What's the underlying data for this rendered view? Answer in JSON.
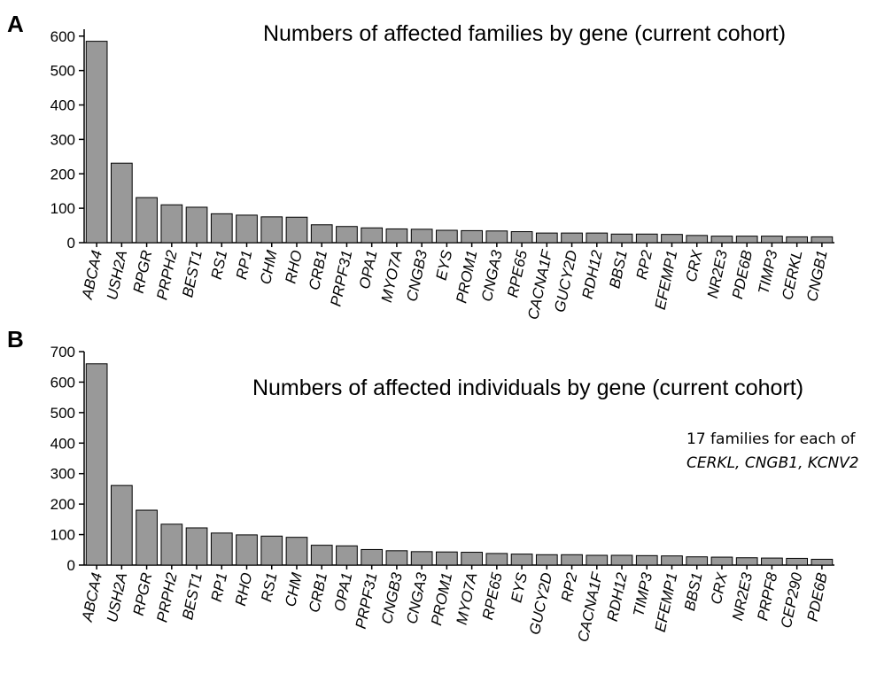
{
  "chart_data": [
    {
      "type": "bar",
      "panel": "A",
      "title": "Numbers of affected families by gene (current cohort)",
      "categories": [
        "ABCA4",
        "USH2A",
        "RPGR",
        "PRPH2",
        "BEST1",
        "RS1",
        "RP1",
        "CHM",
        "RHO",
        "CRB1",
        "PRPF31",
        "OPA1",
        "MYO7A",
        "CNGB3",
        "EYS",
        "PROM1",
        "CNGA3",
        "RPE65",
        "CACNA1F",
        "GUCY2D",
        "RDH12",
        "BBS1",
        "RP2",
        "EFEMP1",
        "CRX",
        "NR2E3",
        "PDE6B",
        "TIMP3",
        "CERKL",
        "CNGB1"
      ],
      "values": [
        585,
        231,
        131,
        110,
        103,
        84,
        80,
        75,
        74,
        52,
        47,
        43,
        40,
        39,
        36,
        35,
        34,
        32,
        28,
        28,
        28,
        25,
        25,
        24,
        21,
        19,
        19,
        19,
        17,
        17
      ],
      "color": "#999999",
      "ylim": [
        0,
        620
      ],
      "yticks": [
        0,
        100,
        200,
        300,
        400,
        500,
        600
      ]
    },
    {
      "type": "bar",
      "panel": "B",
      "title": "Numbers of affected individuals by gene (current cohort)",
      "categories": [
        "ABCA4",
        "USH2A",
        "RPGR",
        "PRPH2",
        "BEST1",
        "RP1",
        "RHO",
        "RS1",
        "CHM",
        "CRB1",
        "OPA1",
        "PRPF31",
        "CNGB3",
        "CNGA3",
        "PROM1",
        "MYO7A",
        "RPE65",
        "EYS",
        "GUCY2D",
        "RP2",
        "CACNA1F",
        "RDH12",
        "TIMP3",
        "EFEMP1",
        "BBS1",
        "CRX",
        "NR2E3",
        "PRPF8",
        "CEP290",
        "PDE6B"
      ],
      "values": [
        660,
        261,
        180,
        134,
        122,
        105,
        99,
        95,
        91,
        65,
        63,
        51,
        47,
        44,
        43,
        42,
        38,
        36,
        34,
        34,
        32,
        32,
        31,
        30,
        27,
        26,
        24,
        23,
        22,
        19
      ],
      "color": "#999999",
      "ylim": [
        0,
        700
      ],
      "yticks": [
        0,
        100,
        200,
        300,
        400,
        500,
        600,
        700
      ],
      "annotations": [
        "17 families for each of",
        "CERKL, CNGB1, KCNV2"
      ]
    }
  ]
}
